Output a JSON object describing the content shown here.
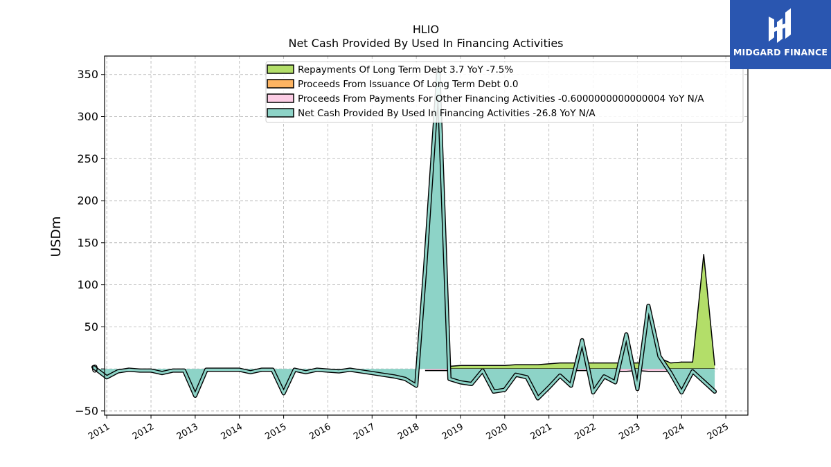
{
  "brand": {
    "name": "MIDGARD FINANCE",
    "bg_color": "#2a56b0",
    "icon": "midgard-logo-icon"
  },
  "chart_data": {
    "type": "area",
    "title": "HLIO",
    "subtitle": "Net Cash Provided By Used In Financing Activities",
    "ylabel": "USDm",
    "xlabel": "",
    "ylim": [
      -55,
      372
    ],
    "xlim": [
      2010.95,
      2025.5
    ],
    "yticks": [
      -50,
      0,
      50,
      100,
      150,
      200,
      250,
      300,
      350
    ],
    "xticks": [
      "2011",
      "2012",
      "2013",
      "2014",
      "2015",
      "2016",
      "2017",
      "2018",
      "2019",
      "2020",
      "2021",
      "2022",
      "2023",
      "2024",
      "2025"
    ],
    "grid": true,
    "legend_position": "top-right",
    "series": [
      {
        "name": "Repayments Of Long Term Debt  3.7 YoY -7.5%",
        "color": "#b3de69",
        "x": [
          2018.2,
          2018.75,
          2019.0,
          2019.25,
          2019.5,
          2019.75,
          2020.0,
          2020.25,
          2020.5,
          2020.75,
          2021.0,
          2021.25,
          2021.5,
          2021.75,
          2022.0,
          2022.25,
          2022.5,
          2022.75,
          2023.0,
          2023.25,
          2023.5,
          2023.75,
          2024.0,
          2024.25,
          2024.5,
          2024.75
        ],
        "values": [
          3,
          3,
          4,
          4,
          4,
          4,
          4,
          5,
          5,
          5,
          6,
          7,
          7,
          7,
          7,
          7,
          7,
          7,
          7,
          7,
          13,
          7,
          8,
          8,
          136,
          4
        ]
      },
      {
        "name": "Proceeds From Issuance Of Long Term Debt  0.0",
        "color": "#fdb462",
        "x": [
          2018.2,
          2018.75,
          2019.0,
          2019.25,
          2019.5,
          2019.75,
          2020.0,
          2020.25,
          2020.5,
          2020.75,
          2021.0,
          2021.25,
          2021.5,
          2021.75,
          2022.0,
          2022.25,
          2022.5,
          2022.75,
          2023.0,
          2023.25,
          2023.5,
          2023.75,
          2024.0,
          2024.25,
          2024.5,
          2024.75
        ],
        "values": [
          0,
          0,
          0,
          0,
          0,
          0,
          0,
          0,
          0,
          0,
          0,
          0,
          0,
          0,
          0,
          0,
          0,
          0,
          0,
          0,
          0,
          0,
          0,
          0,
          0,
          0
        ]
      },
      {
        "name": "Proceeds From Payments For Other Financing Activities  -0.6000000000000004 YoY N/A",
        "color": "#fccde5",
        "x": [
          2018.2,
          2018.75,
          2019.0,
          2019.25,
          2019.5,
          2019.75,
          2020.0,
          2020.25,
          2020.5,
          2020.75,
          2021.0,
          2021.25,
          2021.5,
          2021.75,
          2022.0,
          2022.25,
          2022.5,
          2022.75,
          2023.0,
          2023.25,
          2023.5,
          2023.75,
          2024.0,
          2024.25,
          2024.5,
          2024.75
        ],
        "values": [
          -2,
          -2,
          -2,
          -2,
          -2,
          -2,
          -2,
          -2,
          -2,
          -2,
          -2,
          -2,
          -2,
          -2,
          -2,
          -3,
          -3,
          -3,
          -2,
          -3,
          -3,
          -3,
          -3,
          -3,
          -5,
          -3
        ]
      },
      {
        "name": "Net Cash Provided By Used In Financing Activities  -26.8 YoY N/A",
        "color": "#8dd3c7",
        "x": [
          2010.7,
          2011.0,
          2011.25,
          2011.5,
          2011.75,
          2012.0,
          2012.25,
          2012.5,
          2012.75,
          2013.0,
          2013.25,
          2013.5,
          2013.75,
          2014.0,
          2014.25,
          2014.5,
          2014.75,
          2015.0,
          2015.25,
          2015.5,
          2015.75,
          2016.0,
          2016.25,
          2016.5,
          2016.75,
          2017.0,
          2017.25,
          2017.5,
          2017.75,
          2018.0,
          2018.2,
          2018.5,
          2018.75,
          2019.0,
          2019.25,
          2019.5,
          2019.75,
          2020.0,
          2020.25,
          2020.5,
          2020.75,
          2021.0,
          2021.25,
          2021.5,
          2021.75,
          2022.0,
          2022.25,
          2022.5,
          2022.75,
          2023.0,
          2023.25,
          2023.5,
          2023.75,
          2024.0,
          2024.25,
          2024.5,
          2024.75
        ],
        "values": [
          2,
          -10,
          -3,
          -1,
          -2,
          -2,
          -5,
          -2,
          -2,
          -32,
          -1,
          -1,
          -1,
          -1,
          -4,
          -1,
          -1,
          -29,
          -1,
          -4,
          -1,
          -2,
          -3,
          -1,
          -3,
          -5,
          -7,
          -9,
          -12,
          -20,
          120,
          355,
          -12,
          -16,
          -18,
          -2,
          -27,
          -25,
          -7,
          -10,
          -35,
          -22,
          -8,
          -20,
          34,
          -28,
          -9,
          -16,
          41,
          -24,
          75,
          15,
          -5,
          -28,
          -3,
          -15,
          -27
        ]
      }
    ]
  }
}
